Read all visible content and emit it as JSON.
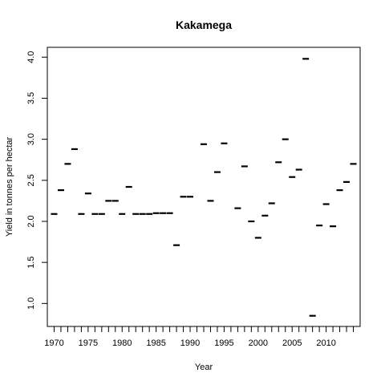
{
  "chart_data": {
    "type": "scatter",
    "marker": "dash",
    "title": "Kakamega",
    "xlabel": "Year",
    "ylabel": "Yield in tonnes per hectar",
    "xlim": [
      1969,
      2015
    ],
    "ylim": [
      0.72,
      4.12
    ],
    "x_ticks": [
      1970,
      1975,
      1980,
      1985,
      1990,
      1995,
      2000,
      2005,
      2010
    ],
    "x_minor_ticks": [
      1970,
      1971,
      1972,
      1973,
      1974,
      1975,
      1976,
      1977,
      1978,
      1979,
      1980,
      1981,
      1982,
      1983,
      1984,
      1985,
      1986,
      1987,
      1988,
      1989,
      1990,
      1991,
      1992,
      1993,
      1994,
      1995,
      1996,
      1997,
      1998,
      1999,
      2000,
      2001,
      2002,
      2003,
      2004,
      2005,
      2006,
      2007,
      2008,
      2009,
      2010,
      2011,
      2012,
      2013,
      2014
    ],
    "y_ticks": [
      "1.0",
      "1.5",
      "2.0",
      "2.5",
      "3.0",
      "3.5",
      "4.0"
    ],
    "grid": false,
    "series": [
      {
        "x": [
          1970,
          1971,
          1972,
          1973,
          1974,
          1975,
          1976,
          1977,
          1978,
          1979,
          1980,
          1981,
          1982,
          1983,
          1984,
          1985,
          1986,
          1987,
          1988,
          1989,
          1990,
          1992,
          1993,
          1994,
          1995,
          1997,
          1998,
          1999,
          2000,
          2001,
          2002,
          2003,
          2004,
          2005,
          2006,
          2007,
          2008,
          2009,
          2010,
          2011,
          2012,
          2013,
          2014
        ],
        "y": [
          2.09,
          2.38,
          2.7,
          2.88,
          2.09,
          2.34,
          2.09,
          2.09,
          2.25,
          2.25,
          2.09,
          2.42,
          2.09,
          2.09,
          2.09,
          2.1,
          2.1,
          2.1,
          1.71,
          2.3,
          2.3,
          2.94,
          2.25,
          2.6,
          2.95,
          2.16,
          2.67,
          2.0,
          1.8,
          2.07,
          2.22,
          2.72,
          3.0,
          2.54,
          2.63,
          3.98,
          0.85,
          1.95,
          2.21,
          1.94,
          2.38,
          2.48,
          2.7
        ],
        "color": "#000000"
      }
    ]
  }
}
